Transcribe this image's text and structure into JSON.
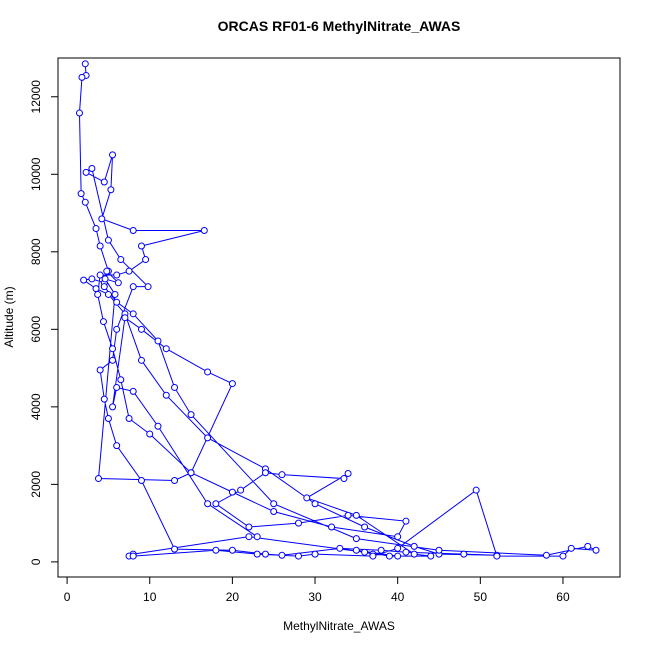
{
  "chart_data": {
    "type": "line",
    "title": "ORCAS RF01-6 MethylNitrate_AWAS",
    "x_label": "MethylNitrate_AWAS",
    "y_label": "Altitude (m)",
    "xlim": [
      -1.1,
      66.9
    ],
    "ylim": [
      -390,
      13000
    ],
    "xticks": [
      0,
      10,
      20,
      30,
      40,
      50,
      60
    ],
    "yticks": [
      0,
      2000,
      4000,
      6000,
      8000,
      10000,
      12000
    ],
    "x": [
      2.2,
      2.3,
      1.8,
      1.5,
      1.7,
      2.2,
      3.5,
      4,
      5,
      4.5,
      3,
      2,
      3.5,
      5,
      7,
      9,
      12,
      17,
      24,
      30,
      36,
      42,
      45,
      52,
      48,
      41,
      38,
      33,
      26,
      24,
      20,
      13,
      9,
      6,
      5,
      4.5,
      4,
      5.5,
      6,
      8,
      9.8,
      6.5,
      5,
      3,
      2.3,
      4.5,
      5.5,
      5.3,
      4.2,
      8,
      16.6,
      9,
      9.5,
      7.5,
      6,
      4,
      3.7,
      4.4,
      5.5,
      6.5,
      7.5,
      10,
      15,
      20,
      25,
      32,
      40,
      41,
      34,
      28,
      22,
      18,
      21,
      24,
      26,
      33.5,
      34,
      29,
      35,
      42,
      44,
      39,
      35,
      40,
      37,
      36,
      22,
      8,
      7.5,
      8,
      18,
      23,
      28,
      30,
      37,
      40,
      49.5,
      52,
      60,
      61,
      64,
      63,
      58,
      45,
      35,
      25,
      15,
      13,
      11,
      8,
      6,
      4.5,
      4.8,
      6.2,
      4.6,
      5.8,
      3.8,
      13,
      15,
      20,
      17,
      12,
      9,
      7,
      5.5,
      6,
      8,
      11,
      17,
      23
    ],
    "series": [
      {
        "color": "#0000ff",
        "values": [
          12850,
          12550,
          12500,
          11580,
          9500,
          9280,
          8600,
          8150,
          7500,
          7200,
          7300,
          7270,
          7050,
          6900,
          6400,
          5200,
          4300,
          3200,
          2400,
          1500,
          900,
          400,
          200,
          170,
          200,
          250,
          300,
          350,
          170,
          200,
          300,
          330,
          2100,
          3000,
          3700,
          4200,
          4950,
          5200,
          6000,
          7100,
          7100,
          7800,
          8300,
          10150,
          10050,
          9800,
          10500,
          9600,
          8850,
          8550,
          8550,
          8150,
          7800,
          7500,
          7400,
          7400,
          6900,
          6200,
          5500,
          4700,
          3700,
          3300,
          2300,
          1800,
          1300,
          900,
          650,
          1050,
          1200,
          1000,
          900,
          1500,
          1850,
          2300,
          2250,
          2150,
          2280,
          1650,
          1200,
          200,
          150,
          150,
          300,
          150,
          200,
          250,
          650,
          200,
          150,
          150,
          300,
          200,
          150,
          200,
          150,
          350,
          1850,
          150,
          150,
          350,
          300,
          400,
          170,
          300,
          600,
          1500,
          3800,
          4500,
          5700,
          6400,
          6700,
          7100,
          7500,
          7200,
          7300,
          6900,
          2150,
          2100,
          2300,
          4600,
          4900,
          5500,
          6000,
          6300,
          4000,
          4500,
          4400,
          3500,
          1500,
          650
        ]
      }
    ]
  }
}
